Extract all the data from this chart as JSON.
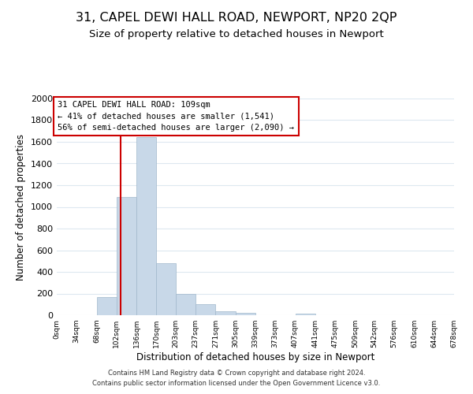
{
  "title": "31, CAPEL DEWI HALL ROAD, NEWPORT, NP20 2QP",
  "subtitle": "Size of property relative to detached houses in Newport",
  "xlabel": "Distribution of detached houses by size in Newport",
  "ylabel": "Number of detached properties",
  "bin_edges": [
    0,
    34,
    68,
    102,
    136,
    170,
    203,
    237,
    271,
    305,
    339,
    373,
    407,
    441,
    475,
    509,
    542,
    576,
    610,
    644,
    678
  ],
  "bar_heights": [
    0,
    0,
    170,
    1090,
    1640,
    480,
    200,
    100,
    35,
    20,
    0,
    0,
    15,
    0,
    0,
    0,
    0,
    0,
    0,
    0
  ],
  "bar_color": "#c8d8e8",
  "bar_edgecolor": "#a0b8cc",
  "vline_x": 109,
  "vline_color": "#cc0000",
  "ylim": [
    0,
    2000
  ],
  "yticks": [
    0,
    200,
    400,
    600,
    800,
    1000,
    1200,
    1400,
    1600,
    1800,
    2000
  ],
  "xtick_labels": [
    "0sqm",
    "34sqm",
    "68sqm",
    "102sqm",
    "136sqm",
    "170sqm",
    "203sqm",
    "237sqm",
    "271sqm",
    "305sqm",
    "339sqm",
    "373sqm",
    "407sqm",
    "441sqm",
    "475sqm",
    "509sqm",
    "542sqm",
    "576sqm",
    "610sqm",
    "644sqm",
    "678sqm"
  ],
  "annotation_title": "31 CAPEL DEWI HALL ROAD: 109sqm",
  "annotation_line1": "← 41% of detached houses are smaller (1,541)",
  "annotation_line2": "56% of semi-detached houses are larger (2,090) →",
  "annotation_box_color": "#ffffff",
  "annotation_box_edgecolor": "#cc0000",
  "footer1": "Contains HM Land Registry data © Crown copyright and database right 2024.",
  "footer2": "Contains public sector information licensed under the Open Government Licence v3.0.",
  "background_color": "#ffffff",
  "grid_color": "#dde8f0",
  "title_fontsize": 11.5,
  "subtitle_fontsize": 9.5
}
